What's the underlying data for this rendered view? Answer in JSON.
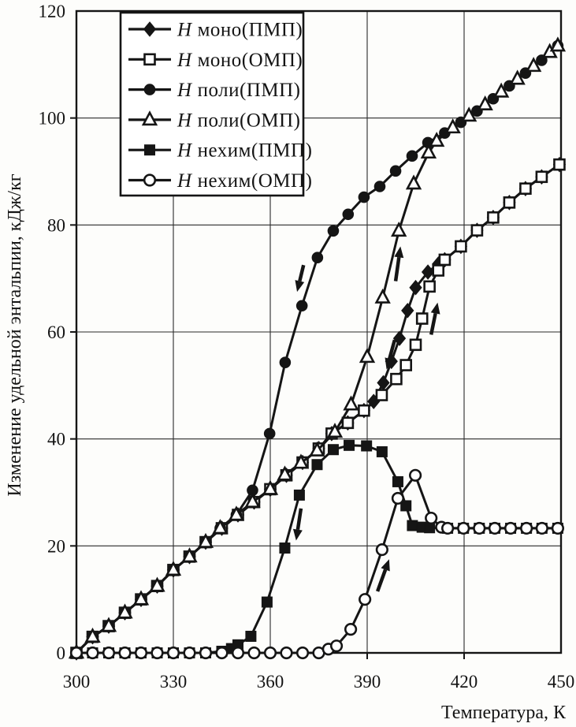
{
  "chart_data": {
    "type": "line",
    "title": "",
    "xlabel": "Температура, К",
    "ylabel": "Изменение удельной энтальпии, кДж/кг",
    "xlim": [
      300,
      450
    ],
    "ylim": [
      0,
      120
    ],
    "xticks": [
      300,
      330,
      360,
      390,
      420,
      450
    ],
    "yticks": [
      0,
      20,
      40,
      60,
      80,
      100,
      120
    ],
    "grid": true,
    "legend_position": "top-left",
    "legend_symbol": "H",
    "ink": "#151515",
    "series": [
      {
        "label": "моно(ПМП)",
        "marker": "diamond-filled",
        "points": [
          [
            300,
            0
          ],
          [
            305,
            3
          ],
          [
            310,
            5
          ],
          [
            315,
            7.5
          ],
          [
            320,
            10
          ],
          [
            325,
            12.5
          ],
          [
            330,
            15.5
          ],
          [
            335,
            18
          ],
          [
            340,
            20.7
          ],
          [
            345,
            23.3
          ],
          [
            350,
            25.8
          ],
          [
            355,
            28.2
          ],
          [
            360,
            30.6
          ],
          [
            365,
            33.2
          ],
          [
            370,
            35.6
          ],
          [
            375,
            38.2
          ],
          [
            379,
            41
          ],
          [
            384,
            43
          ],
          [
            389,
            45.3
          ],
          [
            392,
            47
          ],
          [
            395,
            50.5
          ],
          [
            397.5,
            54.5
          ],
          [
            400,
            58.8
          ],
          [
            402.5,
            64
          ],
          [
            405,
            68.3
          ],
          [
            408.8,
            71.2
          ],
          [
            412,
            72.7
          ],
          [
            414,
            73.5
          ],
          [
            419,
            76
          ],
          [
            424,
            79
          ],
          [
            429,
            81.4
          ],
          [
            434,
            84.2
          ],
          [
            439,
            86.8
          ],
          [
            444,
            89
          ],
          [
            449.5,
            91.3
          ]
        ]
      },
      {
        "label": "моно(ОМП)",
        "marker": "square-open",
        "points": [
          [
            300,
            0
          ],
          [
            305,
            3
          ],
          [
            310,
            5
          ],
          [
            315,
            7.5
          ],
          [
            320,
            10
          ],
          [
            325,
            12.5
          ],
          [
            330,
            15.5
          ],
          [
            335,
            18
          ],
          [
            340,
            20.7
          ],
          [
            345,
            23.3
          ],
          [
            350,
            25.8
          ],
          [
            355,
            28.2
          ],
          [
            360,
            30.6
          ],
          [
            365,
            33.2
          ],
          [
            370,
            35.6
          ],
          [
            375,
            38.2
          ],
          [
            379,
            41
          ],
          [
            384,
            43
          ],
          [
            389,
            45.3
          ],
          [
            394.5,
            48.2
          ],
          [
            399,
            51.2
          ],
          [
            402,
            53.8
          ],
          [
            405,
            57.6
          ],
          [
            407,
            62.5
          ],
          [
            409.3,
            68.5
          ],
          [
            412,
            71.5
          ],
          [
            414,
            73.5
          ],
          [
            419,
            76
          ],
          [
            424,
            79
          ],
          [
            429,
            81.4
          ],
          [
            434,
            84.2
          ],
          [
            439,
            86.8
          ],
          [
            444,
            89
          ],
          [
            449.5,
            91.3
          ]
        ]
      },
      {
        "label": "поли(ПМП)",
        "marker": "circle-filled",
        "points": [
          [
            300,
            0
          ],
          [
            305,
            3
          ],
          [
            310,
            5
          ],
          [
            315,
            7.5
          ],
          [
            320,
            10
          ],
          [
            325,
            12.5
          ],
          [
            330,
            15.5
          ],
          [
            335,
            18
          ],
          [
            340,
            20.7
          ],
          [
            344.5,
            23.3
          ],
          [
            349.5,
            25.8
          ],
          [
            354.5,
            30.4
          ],
          [
            359.8,
            41
          ],
          [
            364.6,
            54.3
          ],
          [
            369.8,
            64.9
          ],
          [
            374.6,
            73.9
          ],
          [
            379.5,
            78.9
          ],
          [
            384.1,
            82
          ],
          [
            389,
            85.2
          ],
          [
            393.9,
            87.2
          ],
          [
            398.8,
            90.1
          ],
          [
            403.9,
            92.9
          ],
          [
            408.8,
            95.4
          ],
          [
            414,
            97.2
          ],
          [
            419,
            99.2
          ],
          [
            424,
            101.3
          ],
          [
            429,
            103.6
          ],
          [
            434,
            106
          ],
          [
            439,
            108.4
          ],
          [
            444,
            110.8
          ],
          [
            449,
            113.5
          ]
        ]
      },
      {
        "label": "поли(ОМП)",
        "marker": "triangle-open",
        "points": [
          [
            300,
            0
          ],
          [
            305,
            3
          ],
          [
            310,
            5
          ],
          [
            315,
            7.5
          ],
          [
            320,
            10
          ],
          [
            325,
            12.5
          ],
          [
            330,
            15.5
          ],
          [
            335,
            18
          ],
          [
            340,
            20.7
          ],
          [
            344.5,
            23.3
          ],
          [
            349.5,
            25.8
          ],
          [
            354.5,
            28.2
          ],
          [
            360,
            30.6
          ],
          [
            364.5,
            33.3
          ],
          [
            369.5,
            35.5
          ],
          [
            374.5,
            37.8
          ],
          [
            380,
            41.3
          ],
          [
            385,
            46.4
          ],
          [
            390,
            55.3
          ],
          [
            394.8,
            66.4
          ],
          [
            399.8,
            78.9
          ],
          [
            404.4,
            87.7
          ],
          [
            409,
            93.5
          ],
          [
            411.5,
            95.7
          ],
          [
            416.5,
            98.2
          ],
          [
            421.5,
            100.4
          ],
          [
            426.5,
            102.5
          ],
          [
            431.5,
            104.9
          ],
          [
            436.5,
            107.3
          ],
          [
            441.5,
            109.7
          ],
          [
            446.5,
            112.3
          ],
          [
            449,
            113.5
          ]
        ]
      },
      {
        "label": "нехим(ПМП)",
        "marker": "square-filled",
        "points": [
          [
            300,
            0
          ],
          [
            305,
            0
          ],
          [
            310,
            0
          ],
          [
            315,
            0
          ],
          [
            320,
            0
          ],
          [
            325,
            0
          ],
          [
            330,
            0
          ],
          [
            335,
            0
          ],
          [
            340,
            0
          ],
          [
            345,
            0.3
          ],
          [
            348,
            0.8
          ],
          [
            350,
            1.5
          ],
          [
            354,
            3.1
          ],
          [
            359,
            9.5
          ],
          [
            364.5,
            19.6
          ],
          [
            369,
            29.5
          ],
          [
            374.5,
            35.2
          ],
          [
            379.5,
            38
          ],
          [
            384.4,
            38.8
          ],
          [
            389.8,
            38.7
          ],
          [
            394.6,
            37.6
          ],
          [
            399.5,
            32
          ],
          [
            402,
            27.5
          ],
          [
            404,
            23.8
          ],
          [
            407,
            23.5
          ],
          [
            409.3,
            23.4
          ],
          [
            414.9,
            23.3
          ],
          [
            419.8,
            23.3
          ],
          [
            424.7,
            23.3
          ],
          [
            429.5,
            23.3
          ],
          [
            434.4,
            23.3
          ],
          [
            439.3,
            23.3
          ],
          [
            444.1,
            23.3
          ],
          [
            449,
            23.3
          ]
        ]
      },
      {
        "label": "нехим(ОМП)",
        "marker": "circle-open",
        "points": [
          [
            300,
            0
          ],
          [
            305,
            0
          ],
          [
            310,
            0
          ],
          [
            315,
            0
          ],
          [
            320,
            0
          ],
          [
            325,
            0
          ],
          [
            330,
            0
          ],
          [
            335,
            0
          ],
          [
            340,
            0
          ],
          [
            345,
            0
          ],
          [
            350,
            0
          ],
          [
            355,
            0
          ],
          [
            360,
            0
          ],
          [
            365,
            0
          ],
          [
            370,
            0
          ],
          [
            375,
            0
          ],
          [
            378,
            0.7
          ],
          [
            380.5,
            1.3
          ],
          [
            384.9,
            4.4
          ],
          [
            389.3,
            10
          ],
          [
            394.6,
            19.3
          ],
          [
            399.5,
            28.9
          ],
          [
            404.9,
            33.2
          ],
          [
            409.8,
            25.2
          ],
          [
            413,
            23.5
          ],
          [
            414.9,
            23.3
          ],
          [
            419.8,
            23.3
          ],
          [
            424.7,
            23.3
          ],
          [
            429.5,
            23.3
          ],
          [
            434.4,
            23.3
          ],
          [
            439.3,
            23.3
          ],
          [
            444.1,
            23.3
          ],
          [
            449,
            23.3
          ]
        ]
      }
    ],
    "arrows": [
      {
        "from": [
          370.3,
          72.5
        ],
        "to": [
          368.3,
          67.5
        ]
      },
      {
        "from": [
          398.8,
          69.5
        ],
        "to": [
          400.3,
          76.0
        ]
      },
      {
        "from": [
          398.5,
          58.5
        ],
        "to": [
          396.0,
          53.0
        ]
      },
      {
        "from": [
          409.8,
          59.5
        ],
        "to": [
          411.8,
          65.5
        ]
      },
      {
        "from": [
          369.5,
          27.0
        ],
        "to": [
          368.0,
          21.0
        ]
      },
      {
        "from": [
          393.2,
          11.5
        ],
        "to": [
          396.8,
          17.5
        ]
      }
    ]
  }
}
